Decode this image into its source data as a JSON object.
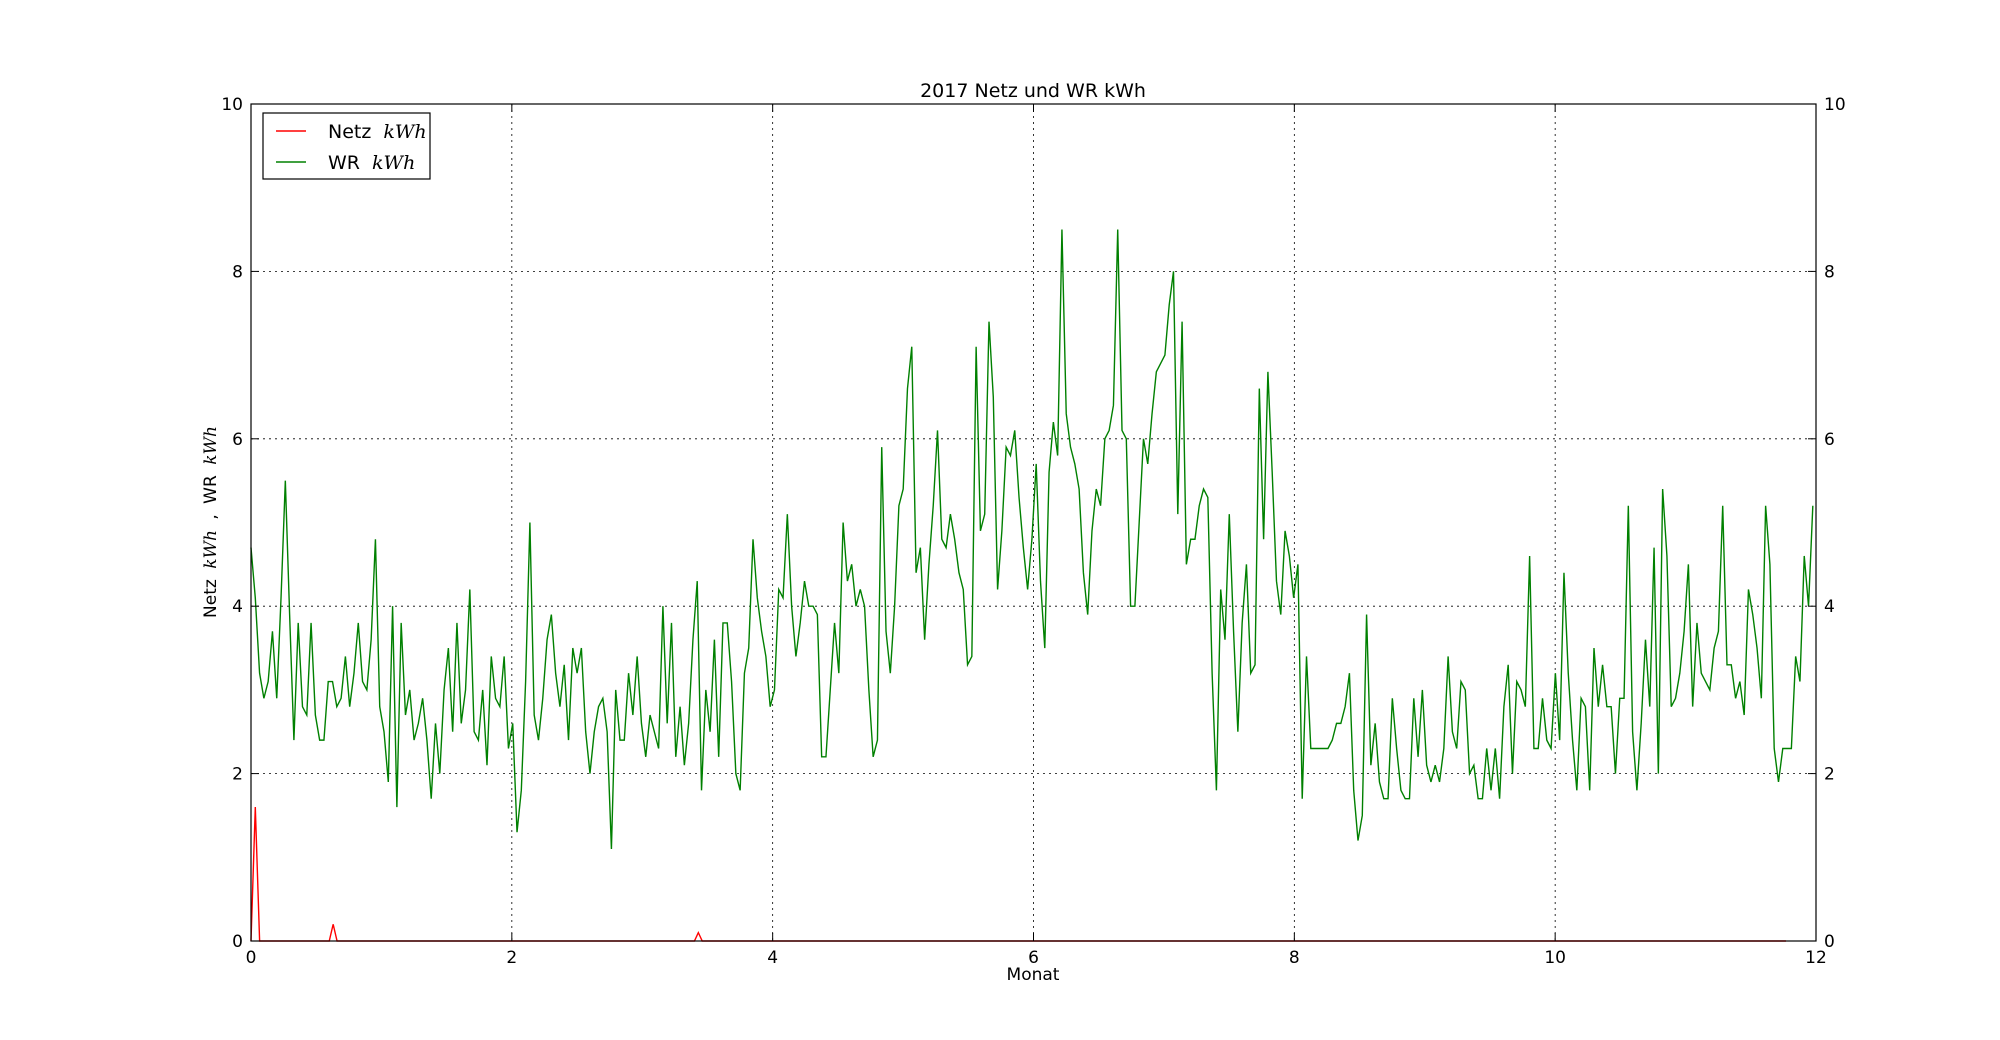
{
  "chart_data": {
    "type": "line",
    "title": "2017 Netz und WR kWh",
    "xlabel": "Monat",
    "ylabel": "Netz kWh , WR kWh",
    "ylabel_parts": {
      "netz": "Netz",
      "sep": ",",
      "wr": "WR",
      "unit": "kWh"
    },
    "xlim": [
      0,
      12
    ],
    "ylim": [
      0,
      10
    ],
    "x_ticks": [
      0,
      2,
      4,
      6,
      8,
      10,
      12
    ],
    "y_ticks": [
      0,
      2,
      4,
      6,
      8,
      10
    ],
    "grid": true,
    "legend_position": "top-left",
    "secondary_y_axis": true,
    "series": [
      {
        "name": "Netz kWh",
        "label": "Netz",
        "unit": "kWh",
        "color": "#ff0000",
        "x": [
          0,
          0.033,
          0.066,
          0.1,
          0.5,
          0.6,
          0.63,
          0.66,
          3.3,
          3.4,
          3.43,
          3.46,
          11.77
        ],
        "y": [
          0,
          1.6,
          0,
          0,
          0,
          0,
          0.2,
          0,
          0,
          0,
          0.1,
          0,
          0
        ]
      },
      {
        "name": "WR kWh",
        "label": "WR",
        "unit": "kWh",
        "color": "#008000",
        "x_start": 0,
        "x_step": 0.0329,
        "y": [
          4.7,
          4.1,
          3.2,
          2.9,
          3.1,
          3.7,
          2.9,
          4.1,
          5.5,
          3.9,
          2.4,
          3.8,
          2.8,
          2.7,
          3.8,
          2.7,
          2.4,
          2.4,
          3.1,
          3.1,
          2.8,
          2.9,
          3.4,
          2.8,
          3.2,
          3.8,
          3.1,
          3.0,
          3.6,
          4.8,
          2.8,
          2.5,
          1.9,
          4.0,
          1.6,
          3.8,
          2.7,
          3.0,
          2.4,
          2.6,
          2.9,
          2.4,
          1.7,
          2.6,
          2.0,
          3.0,
          3.5,
          2.5,
          3.8,
          2.6,
          3.0,
          4.2,
          2.5,
          2.4,
          3.0,
          2.1,
          3.4,
          2.9,
          2.8,
          3.4,
          2.3,
          2.6,
          1.3,
          1.8,
          3.1,
          5.0,
          2.7,
          2.4,
          2.9,
          3.6,
          3.9,
          3.2,
          2.8,
          3.3,
          2.4,
          3.5,
          3.2,
          3.5,
          2.5,
          2.0,
          2.5,
          2.8,
          2.9,
          2.5,
          1.1,
          3.0,
          2.4,
          2.4,
          3.2,
          2.7,
          3.4,
          2.6,
          2.2,
          2.7,
          2.5,
          2.3,
          4.0,
          2.6,
          3.8,
          2.2,
          2.8,
          2.1,
          2.6,
          3.6,
          4.3,
          1.8,
          3.0,
          2.5,
          3.6,
          2.2,
          3.8,
          3.8,
          3.1,
          2.0,
          1.8,
          3.2,
          3.5,
          4.8,
          4.1,
          3.7,
          3.4,
          2.8,
          3.0,
          4.2,
          4.1,
          5.1,
          4.0,
          3.4,
          3.8,
          4.3,
          4.0,
          4.0,
          3.9,
          2.2,
          2.2,
          3.0,
          3.8,
          3.2,
          5.0,
          4.3,
          4.5,
          4.0,
          4.2,
          4.0,
          3.0,
          2.2,
          2.4,
          5.9,
          3.7,
          3.2,
          4.0,
          5.2,
          5.4,
          6.6,
          7.1,
          4.4,
          4.7,
          3.6,
          4.5,
          5.2,
          6.1,
          4.8,
          4.7,
          5.1,
          4.8,
          4.4,
          4.2,
          3.3,
          3.4,
          7.1,
          4.9,
          5.1,
          7.4,
          6.5,
          4.2,
          4.9,
          5.9,
          5.8,
          6.1,
          5.3,
          4.7,
          4.2,
          4.8,
          5.7,
          4.3,
          3.5,
          5.6,
          6.2,
          5.8,
          8.5,
          6.3,
          5.9,
          5.7,
          5.4,
          4.4,
          3.9,
          4.9,
          5.4,
          5.2,
          6.0,
          6.1,
          6.4,
          8.5,
          6.1,
          6.0,
          4.0,
          4.0,
          5.0,
          6.0,
          5.7,
          6.3,
          6.8,
          6.9,
          7.0,
          7.6,
          8.0,
          5.1,
          7.4,
          4.5,
          4.8,
          4.8,
          5.2,
          5.4,
          5.3,
          3.2,
          1.8,
          4.2,
          3.6,
          5.1,
          3.7,
          2.5,
          3.8,
          4.5,
          3.2,
          3.3,
          6.6,
          4.8,
          6.8,
          5.6,
          4.3,
          3.9,
          4.9,
          4.6,
          4.1,
          4.5,
          1.7,
          3.4,
          2.3,
          2.3,
          2.3,
          2.3,
          2.3,
          2.4,
          2.6,
          2.6,
          2.8,
          3.2,
          1.8,
          1.2,
          1.5,
          3.9,
          2.1,
          2.6,
          1.9,
          1.7,
          1.7,
          2.9,
          2.3,
          1.8,
          1.7,
          1.7,
          2.9,
          2.2,
          3.0,
          2.1,
          1.9,
          2.1,
          1.9,
          2.3,
          3.4,
          2.5,
          2.3,
          3.1,
          3.0,
          2.0,
          2.1,
          1.7,
          1.7,
          2.3,
          1.8,
          2.3,
          1.7,
          2.8,
          3.3,
          2.0,
          3.1,
          3.0,
          2.8,
          4.6,
          2.3,
          2.3,
          2.9,
          2.4,
          2.3,
          3.2,
          2.4,
          4.4,
          3.2,
          2.4,
          1.8,
          2.9,
          2.8,
          1.8,
          3.5,
          2.8,
          3.3,
          2.8,
          2.8,
          2.0,
          2.9,
          2.9,
          5.2,
          2.5,
          1.8,
          2.6,
          3.6,
          2.8,
          4.7,
          2.0,
          5.4,
          4.6,
          2.8,
          2.9,
          3.2,
          3.7,
          4.5,
          2.8,
          3.8,
          3.2,
          3.1,
          3.0,
          3.5,
          3.7,
          5.2,
          3.3,
          3.3,
          2.9,
          3.1,
          2.7,
          4.2,
          3.9,
          3.5,
          2.9,
          5.2,
          4.5,
          2.3,
          1.9,
          2.3,
          2.3,
          2.3,
          3.4,
          3.1,
          4.6,
          4.0,
          5.2
        ]
      }
    ]
  }
}
